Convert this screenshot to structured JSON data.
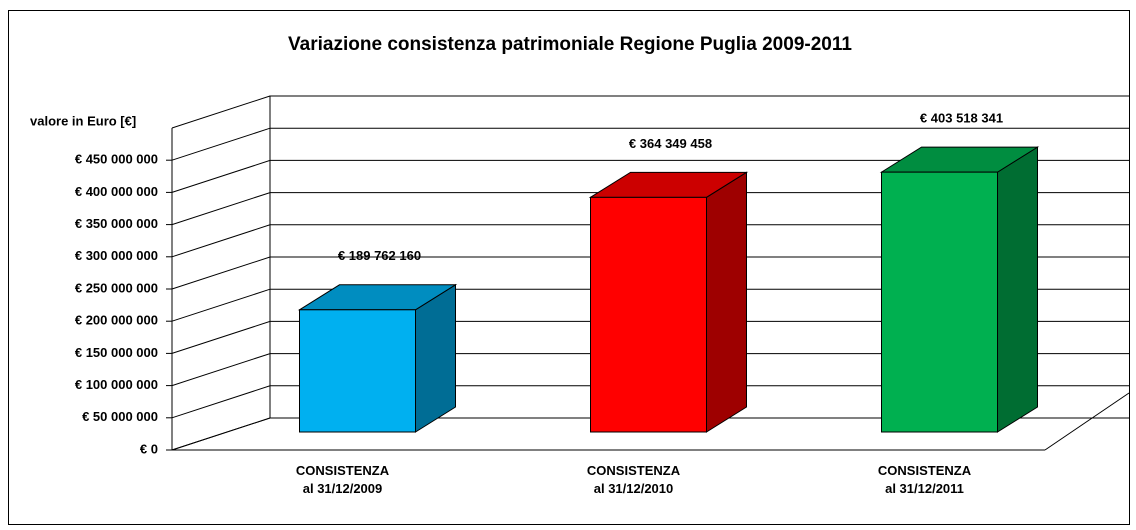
{
  "chart_data": {
    "type": "bar3d",
    "title": "Variazione consistenza patrimoniale Regione Puglia 2009-2011",
    "y_label": "valore in Euro [€]",
    "categories": [
      "CONSISTENZA\nal 31/12/2009",
      "CONSISTENZA\nal 31/12/2010",
      "CONSISTENZA\nal 31/12/2011"
    ],
    "values": [
      189762160,
      364349458,
      403518341
    ],
    "value_labels": [
      "€ 189 762 160",
      "€ 364 349 458",
      "€ 403 518 341"
    ],
    "colors": [
      "#00b0f0",
      "#ff0000",
      "#00b050"
    ],
    "ylim": [
      0,
      500000000
    ],
    "yticks": [
      {
        "value": 0,
        "label": "€ 0"
      },
      {
        "value": 50000000,
        "label": "€ 50 000 000"
      },
      {
        "value": 100000000,
        "label": "€ 100 000 000"
      },
      {
        "value": 150000000,
        "label": "€ 150 000 000"
      },
      {
        "value": 200000000,
        "label": "€ 200 000 000"
      },
      {
        "value": 250000000,
        "label": "€ 250 000 000"
      },
      {
        "value": 300000000,
        "label": "€ 300 000 000"
      },
      {
        "value": 350000000,
        "label": "€ 350 000 000"
      },
      {
        "value": 400000000,
        "label": "€ 400 000 000"
      },
      {
        "value": 450000000,
        "label": "€ 450 000 000"
      }
    ],
    "grid": true
  }
}
